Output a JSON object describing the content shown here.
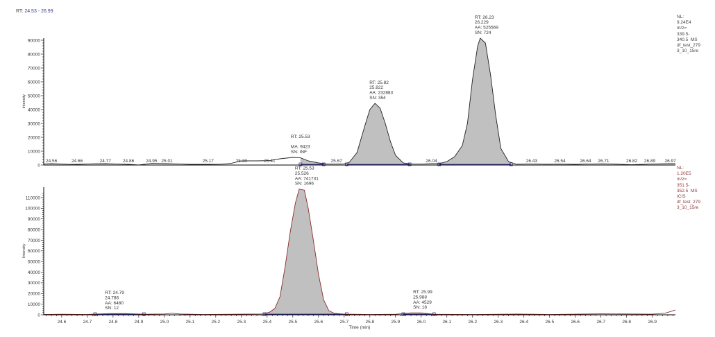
{
  "header": {
    "rt_label": "RT:",
    "rt_range": "24.53 - 26.99"
  },
  "colors": {
    "fill": "#c0c0c0",
    "top_line": "#222222",
    "bottom_line": "#8b2a2a",
    "baseline_marker": "#3a3aa0",
    "bottom_text": "#8b3a3a",
    "text": "#333333"
  },
  "chart_data": [
    {
      "type": "area",
      "ylabel": "Intensity",
      "xlim": [
        24.53,
        26.99
      ],
      "ylim": [
        0,
        92400
      ],
      "yticks": [
        "0",
        "10000",
        "20000",
        "30000",
        "40000",
        "50000",
        "60000",
        "70000",
        "80000",
        "90000"
      ],
      "info_lines": [
        "NL:",
        "9.24E4",
        "m/z=",
        "339.5-",
        "340.5  MS",
        "df_test_279",
        "3_10_15re"
      ],
      "x": [
        24.53,
        24.56,
        24.62,
        24.66,
        24.72,
        24.77,
        24.82,
        24.86,
        24.9,
        24.95,
        25.01,
        25.06,
        25.1,
        25.17,
        25.22,
        25.26,
        25.3,
        25.36,
        25.41,
        25.45,
        25.5,
        25.53,
        25.56,
        25.6,
        25.63,
        25.67,
        25.7,
        25.72,
        25.75,
        25.78,
        25.8,
        25.82,
        25.84,
        25.86,
        25.88,
        25.9,
        25.93,
        25.96,
        26.0,
        26.04,
        26.07,
        26.1,
        26.13,
        26.16,
        26.18,
        26.2,
        26.22,
        26.23,
        26.25,
        26.27,
        26.29,
        26.31,
        26.34,
        26.37,
        26.43,
        26.49,
        26.54,
        26.6,
        26.64,
        26.71,
        26.77,
        26.82,
        26.89,
        26.97,
        26.99
      ],
      "y": [
        800,
        1000,
        600,
        500,
        900,
        1000,
        700,
        500,
        0,
        1200,
        1000,
        800,
        500,
        500,
        600,
        1200,
        3000,
        3000,
        3200,
        4500,
        5500,
        5200,
        3000,
        1500,
        800,
        800,
        900,
        2000,
        9000,
        28000,
        40000,
        44500,
        41000,
        30000,
        17000,
        7000,
        1500,
        700,
        700,
        1000,
        1000,
        2500,
        6000,
        14000,
        30000,
        62000,
        86000,
        91500,
        88000,
        65000,
        36000,
        12000,
        2500,
        600,
        800,
        600,
        700,
        500,
        700,
        900,
        600,
        200,
        700,
        1000,
        1000
      ],
      "baseline_labels": [
        "24.56",
        "24.66",
        "24.77",
        "24.86",
        "24.95",
        "25.01",
        "25.17",
        "25.30",
        "25.41",
        "25.67",
        "26.04",
        "26.43",
        "26.54",
        "26.64",
        "26.71",
        "26.82",
        "26.89",
        "26.97"
      ],
      "peaks": [
        {
          "rt": 25.53,
          "intensity": 5500,
          "lines": [
            "RT: 25.53",
            "",
            "MA: 9423",
            "SN: INF"
          ],
          "start": 25.53,
          "end": 25.62
        },
        {
          "rt": 25.82,
          "intensity": 44500,
          "lines": [
            "RT: 25.82",
            "25.822",
            "AA: 232883",
            "SN: 354"
          ],
          "start": 25.71,
          "end": 25.955
        },
        {
          "rt": 26.23,
          "intensity": 91500,
          "lines": [
            "RT: 26.23",
            "26.229",
            "AA: 525569",
            "SN: 724"
          ],
          "start": 26.07,
          "end": 26.35
        }
      ]
    },
    {
      "type": "area",
      "xlabel": "Time (min)",
      "ylabel": "Intensity",
      "xlim": [
        24.53,
        26.99
      ],
      "ylim": [
        0,
        120000
      ],
      "xticks": [
        "24.6",
        "24.7",
        "24.8",
        "24.9",
        "25.0",
        "25.1",
        "25.2",
        "25.3",
        "25.4",
        "25.5",
        "25.6",
        "25.7",
        "25.8",
        "25.9",
        "26.0",
        "26.1",
        "26.2",
        "26.3",
        "26.4",
        "26.5",
        "26.6",
        "26.7",
        "26.8",
        "26.9"
      ],
      "yticks": [
        "0",
        "10000",
        "20000",
        "30000",
        "40000",
        "50000",
        "60000",
        "70000",
        "80000",
        "90000",
        "100000",
        "110000"
      ],
      "info_lines": [
        "NL:",
        "1.20E5",
        "m/z=",
        "351.5-",
        "352.5  MS",
        "ICIS",
        "df_test_279",
        "3_10_15re"
      ],
      "x": [
        24.53,
        24.6,
        24.7,
        24.74,
        24.79,
        24.85,
        24.92,
        25.0,
        25.03,
        25.06,
        25.15,
        25.27,
        25.3,
        25.38,
        25.41,
        25.43,
        25.45,
        25.47,
        25.49,
        25.51,
        25.525,
        25.545,
        25.56,
        25.58,
        25.6,
        25.62,
        25.64,
        25.66,
        25.7,
        25.8,
        25.9,
        25.96,
        26.0,
        26.05,
        26.2,
        26.38,
        26.5,
        26.7,
        26.9,
        26.95,
        26.99
      ],
      "y": [
        300,
        500,
        300,
        800,
        1200,
        1200,
        500,
        800,
        1500,
        800,
        300,
        500,
        600,
        800,
        2500,
        6000,
        17000,
        45000,
        78000,
        105000,
        118000,
        117000,
        100000,
        70000,
        38000,
        14000,
        4000,
        1500,
        600,
        300,
        500,
        1800,
        1800,
        500,
        300,
        700,
        300,
        900,
        600,
        1500,
        4500
      ],
      "peaks": [
        {
          "rt": 24.79,
          "intensity": 1200,
          "lines": [
            "RT: 24.79",
            "24.786",
            "AA: 6480",
            "SN: 12"
          ],
          "start": 24.73,
          "end": 24.92
        },
        {
          "rt": 25.53,
          "intensity": 118000,
          "lines": [
            "RT: 25.53",
            "25.526",
            "AA: 741731",
            "SN: 1696"
          ],
          "start": 25.39,
          "end": 25.71
        },
        {
          "rt": 25.99,
          "intensity": 1800,
          "lines": [
            "RT: 25.99",
            "25.988",
            "AA: 4529",
            "SN: 18"
          ],
          "start": 25.93,
          "end": 26.05
        }
      ]
    }
  ]
}
